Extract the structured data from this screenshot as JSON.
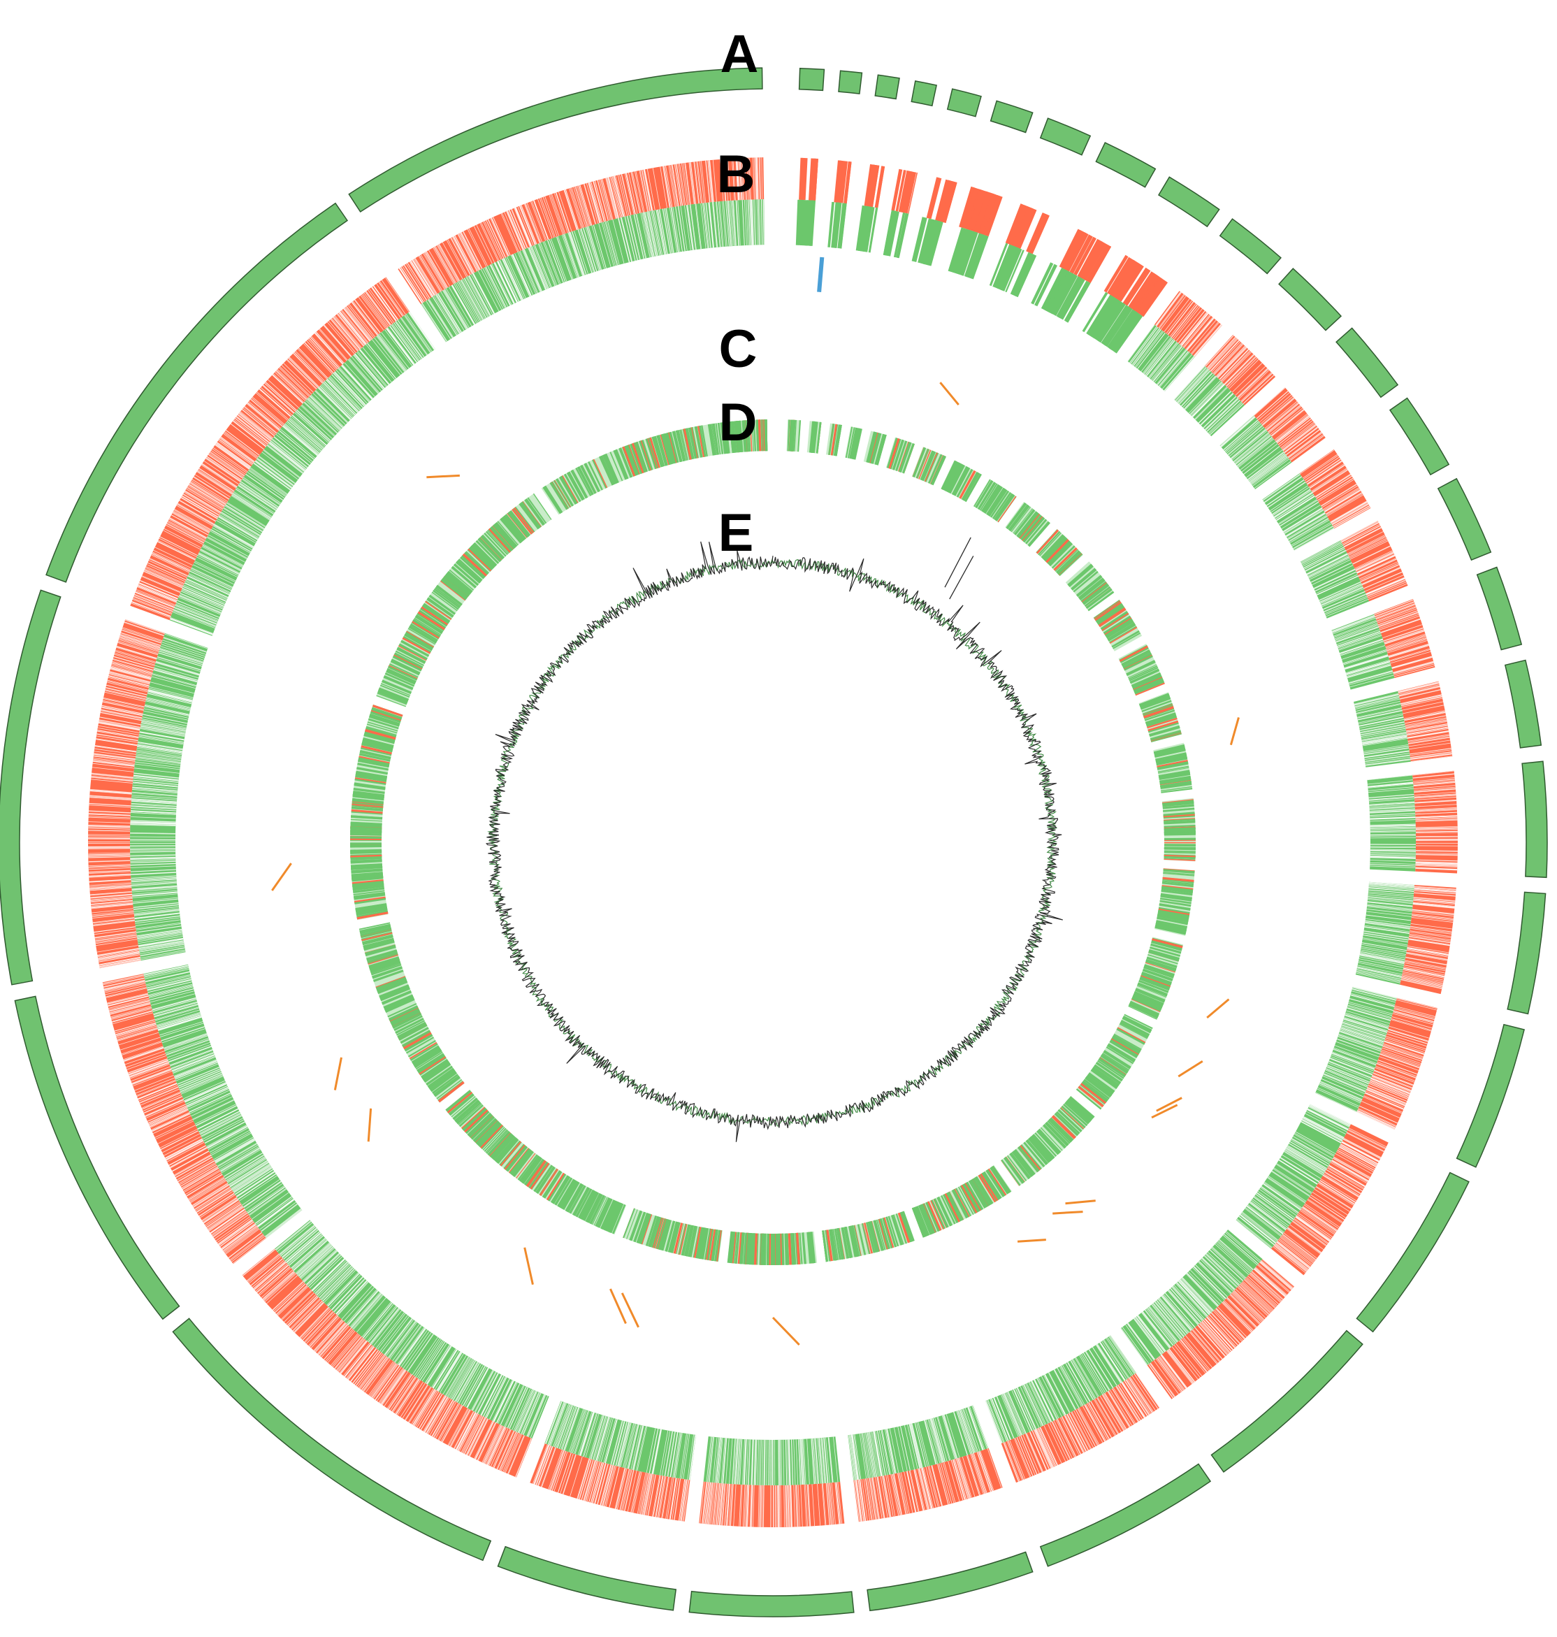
{
  "ring_labels": {
    "a": "A",
    "b": "B",
    "c": "C",
    "d": "D",
    "e": "E"
  },
  "colors": {
    "contig": "#70c270",
    "contig_stroke": "#2f5a2f",
    "forward": "#ff6b4a",
    "reverse": "#6cc76c",
    "blue_mark": "#4a9fd6",
    "orange_mark": "#f08a2a",
    "gc_dark": "#2a2a2a",
    "gc_red": "#c0392b",
    "gc_green": "#2e7d32"
  },
  "contigs": {
    "count": 31
  }
}
